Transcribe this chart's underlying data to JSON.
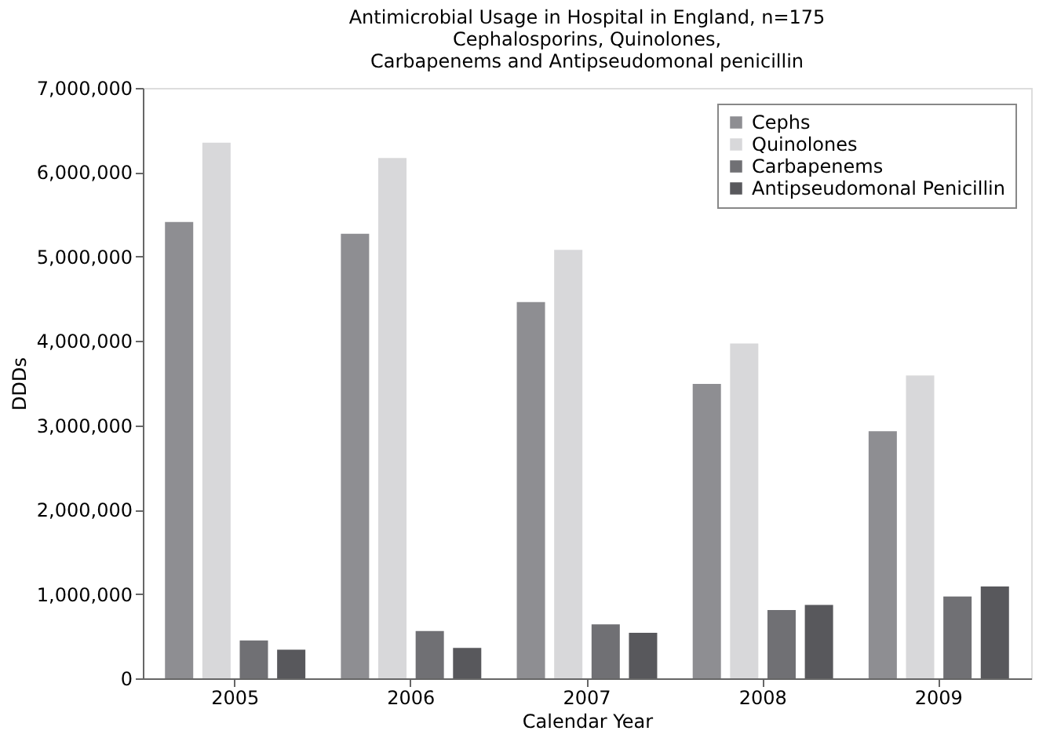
{
  "chart_data": {
    "type": "bar",
    "title": [
      "Antimicrobial Usage in Hospital in England, n=175",
      "Cephalosporins, Quinolones,",
      "Carbapenems and Antipseudomonal penicillin"
    ],
    "xlabel": "Calendar Year",
    "ylabel": "DDDs",
    "categories": [
      "2005",
      "2006",
      "2007",
      "2008",
      "2009"
    ],
    "series": [
      {
        "name": "Cephs",
        "color": "#8e8e92",
        "values": [
          5410000,
          5270000,
          4460000,
          3490000,
          2930000
        ]
      },
      {
        "name": "Quinolones",
        "color": "#d8d8da",
        "values": [
          6350000,
          6170000,
          5080000,
          3970000,
          3590000
        ]
      },
      {
        "name": "Carbapenems",
        "color": "#707074",
        "values": [
          450000,
          560000,
          640000,
          810000,
          970000
        ]
      },
      {
        "name": "Antipseudomonal Penicillin",
        "color": "#58585c",
        "values": [
          340000,
          360000,
          540000,
          870000,
          1090000
        ]
      }
    ],
    "ylim": [
      0,
      7000000
    ],
    "yticks": [
      {
        "value": 0,
        "label": "0"
      },
      {
        "value": 1000000,
        "label": "1,000,000"
      },
      {
        "value": 2000000,
        "label": "2,000,000"
      },
      {
        "value": 3000000,
        "label": "3,000,000"
      },
      {
        "value": 4000000,
        "label": "4,000,000"
      },
      {
        "value": 5000000,
        "label": "5,000,000"
      },
      {
        "value": 6000000,
        "label": "6,000,000"
      },
      {
        "value": 7000000,
        "label": "7,000,000"
      }
    ],
    "grid": false,
    "legend": "top right"
  }
}
